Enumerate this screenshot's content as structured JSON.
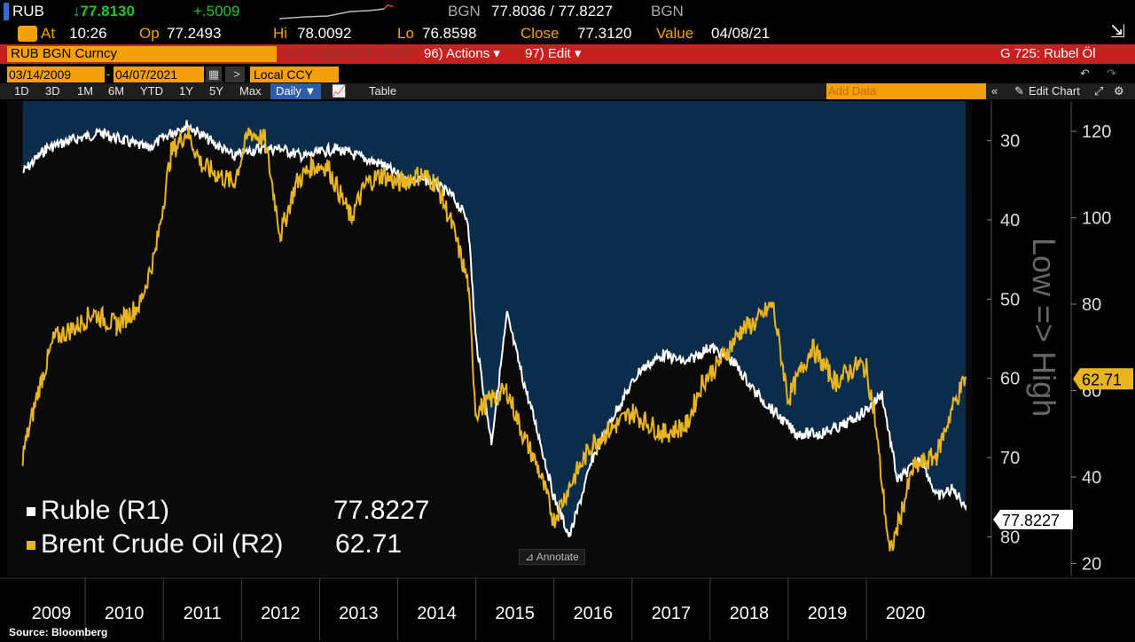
{
  "header": {
    "ticker": "RUB",
    "last_price": "↓77.8130",
    "change": "+.5009",
    "bgn_label": "BGN",
    "bid_ask": "77.8036 / 77.8227",
    "bgn_label2": "BGN",
    "at_label": "At",
    "at_time": "10:26",
    "op_label": "Op",
    "op_value": "77.2493",
    "hi_label": "Hi",
    "hi_value": "78.0092",
    "lo_label": "Lo",
    "lo_value": "76.8598",
    "close_label": "Close",
    "close_value": "77.3120",
    "value_label": "Value",
    "value_date": "04/08/21"
  },
  "redbar": {
    "security": "RUB BGN Curncy",
    "suggested": "94) Suggested Charts",
    "actions": "96) Actions ▾",
    "edit": "97) Edit ▾",
    "chart_name": "G 725: Rubel Öl"
  },
  "datebar": {
    "start_date": "03/14/2009",
    "end_date": "04/07/2021",
    "currency": "Local CCY"
  },
  "toolbar": {
    "periods": [
      "1D",
      "3D",
      "1M",
      "6M",
      "YTD",
      "1Y",
      "5Y",
      "Max"
    ],
    "frequency": "Daily ▼",
    "table": "Table",
    "add_data": "Add Data",
    "edit_chart": "Edit Chart"
  },
  "colors": {
    "ruble": "#ffffff",
    "oil": "#e8b422",
    "band_fill": "#0b2c4a",
    "chart_bg": "#0a0a0a"
  },
  "chart_data": {
    "type": "line",
    "x_start": "2009-03",
    "x_labels": [
      "2009",
      "2010",
      "2011",
      "2012",
      "2013",
      "2014",
      "2015",
      "2016",
      "2017",
      "2018",
      "2019",
      "2020"
    ],
    "series": [
      {
        "name": "Ruble (R1)",
        "last": "77.8227",
        "x": [
          2009.2,
          2009.5,
          2009.8,
          2010.2,
          2010.5,
          2010.8,
          2011.1,
          2011.3,
          2011.6,
          2011.9,
          2012.2,
          2012.5,
          2012.8,
          2013.2,
          2013.5,
          2013.8,
          2014.1,
          2014.4,
          2014.7,
          2014.9,
          2015.0,
          2015.2,
          2015.4,
          2015.6,
          2015.8,
          2016.0,
          2016.2,
          2016.5,
          2016.8,
          2017.1,
          2017.4,
          2017.7,
          2018.0,
          2018.3,
          2018.6,
          2018.8,
          2019.1,
          2019.4,
          2019.7,
          2020.0,
          2020.2,
          2020.4,
          2020.7,
          2020.9,
          2021.1,
          2021.27
        ],
        "y": [
          34,
          31,
          30,
          29,
          30,
          31,
          29,
          28,
          30,
          32,
          31,
          31,
          32,
          31,
          32,
          33,
          35,
          35,
          37,
          40,
          55,
          68,
          52,
          60,
          67,
          75,
          80,
          70,
          64,
          59,
          57,
          58,
          56,
          58,
          62,
          64,
          67,
          67,
          66,
          64,
          62,
          73,
          70,
          75,
          74,
          76
        ],
        "axis": "right-inner",
        "inverted": true
      },
      {
        "name": "Brent Crude Oil (R2)",
        "last": "62.71",
        "x": [
          2009.2,
          2009.4,
          2009.6,
          2009.9,
          2010.1,
          2010.4,
          2010.7,
          2010.9,
          2011.1,
          2011.3,
          2011.5,
          2011.7,
          2011.9,
          2012.1,
          2012.3,
          2012.5,
          2012.7,
          2012.9,
          2013.1,
          2013.4,
          2013.6,
          2013.8,
          2014.0,
          2014.3,
          2014.5,
          2014.7,
          2014.9,
          2015.0,
          2015.2,
          2015.4,
          2015.6,
          2015.8,
          2016.0,
          2016.2,
          2016.5,
          2016.8,
          2017.0,
          2017.4,
          2017.7,
          2017.9,
          2018.1,
          2018.4,
          2018.6,
          2018.8,
          2019.0,
          2019.3,
          2019.6,
          2019.9,
          2020.0,
          2020.1,
          2020.3,
          2020.6,
          2020.9,
          2021.1,
          2021.27
        ],
        "y": [
          45,
          60,
          72,
          75,
          78,
          75,
          80,
          92,
          115,
          120,
          112,
          110,
          108,
          120,
          118,
          96,
          108,
          112,
          112,
          100,
          108,
          110,
          108,
          110,
          108,
          98,
          85,
          55,
          58,
          60,
          50,
          42,
          30,
          38,
          48,
          52,
          55,
          50,
          52,
          62,
          66,
          74,
          76,
          80,
          58,
          70,
          62,
          66,
          65,
          55,
          22,
          42,
          45,
          56,
          63
        ],
        "axis": "right-outer"
      }
    ],
    "inner_axis": {
      "ticks": [
        30,
        40,
        50,
        60,
        70,
        80
      ],
      "range": [
        25,
        85
      ],
      "label": "Low => High"
    },
    "outer_axis": {
      "ticks": [
        20,
        40,
        60,
        80,
        100,
        120
      ],
      "range": [
        17,
        127
      ]
    },
    "annotate": "Annotate",
    "source": "Source:  Bloomberg"
  }
}
